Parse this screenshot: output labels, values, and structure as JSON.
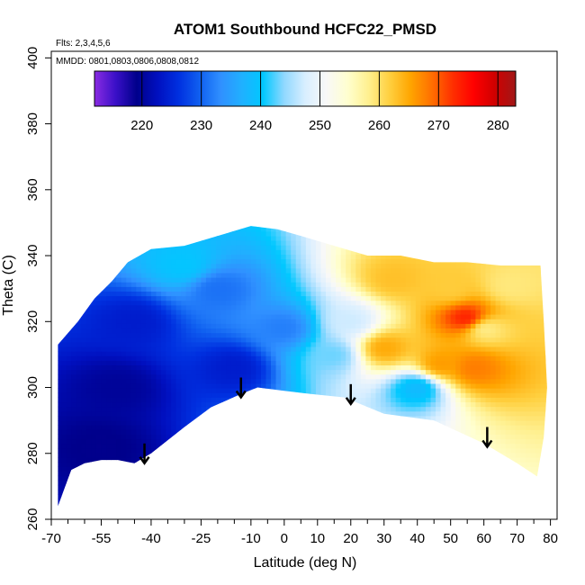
{
  "chart_data": {
    "type": "heatmap",
    "title": "ATOM1 Southbound HCFC22_PMSD",
    "flights_label": "Flts: 2,3,4,5,6",
    "dates_label": "MMDD: 0801,0803,0806,0808,0812",
    "xlabel": "Latitude (deg N)",
    "ylabel": "Theta (C)",
    "xlim": [
      -70,
      82
    ],
    "ylim": [
      260,
      402
    ],
    "x_ticks": [
      -70,
      -55,
      -40,
      -25,
      -10,
      0,
      10,
      20,
      30,
      40,
      50,
      60,
      70,
      80
    ],
    "x_tick_labels": [
      "-70",
      "-55",
      "-40",
      "-25",
      "-10",
      "0",
      "10",
      "20",
      "30",
      "40",
      "50",
      "60",
      "70",
      "80"
    ],
    "x_minor_ticks": [
      -65,
      -60,
      -50,
      -45,
      -35,
      -30,
      -20,
      -15,
      -5,
      5,
      15,
      25,
      35,
      45,
      55,
      65,
      75
    ],
    "y_ticks": [
      260,
      280,
      300,
      320,
      340,
      360,
      380,
      400
    ],
    "y_tick_labels": [
      "260",
      "280",
      "300",
      "320",
      "340",
      "360",
      "380",
      "400"
    ],
    "colorbar": {
      "range": [
        212,
        283
      ],
      "ticks": [
        220,
        230,
        240,
        250,
        260,
        270,
        280
      ],
      "tick_labels": [
        "220",
        "230",
        "240",
        "250",
        "260",
        "270",
        "280"
      ],
      "colors": [
        "#8a2be2",
        "#3a10c8",
        "#00008b",
        "#0010c0",
        "#0030e0",
        "#1060f0",
        "#3090ff",
        "#20b0ff",
        "#00c8ff",
        "#90d8ff",
        "#d8eeff",
        "#f8f8f8",
        "#ffffd0",
        "#fff090",
        "#ffd040",
        "#ffa500",
        "#ff7000",
        "#ff3000",
        "#ff0000",
        "#d00000",
        "#a01818"
      ]
    },
    "arrows_latitude": [
      -42,
      -13,
      20,
      61
    ],
    "arrows_theta": [
      277,
      297,
      295,
      282
    ],
    "ground_boundary": [
      [
        -68,
        264
      ],
      [
        -64,
        275
      ],
      [
        -60,
        277
      ],
      [
        -55,
        278
      ],
      [
        -50,
        278
      ],
      [
        -45,
        277
      ],
      [
        -40,
        280
      ],
      [
        -30,
        288
      ],
      [
        -22,
        294
      ],
      [
        -13,
        298
      ],
      [
        -8,
        300
      ],
      [
        0,
        299
      ],
      [
        8,
        298
      ],
      [
        18,
        297
      ],
      [
        30,
        292
      ],
      [
        45,
        290
      ],
      [
        60,
        283
      ],
      [
        70,
        277
      ],
      [
        76,
        273
      ]
    ],
    "top_boundary": [
      [
        -68,
        313
      ],
      [
        -62,
        320
      ],
      [
        -57,
        327
      ],
      [
        -52,
        332
      ],
      [
        -47,
        338
      ],
      [
        -40,
        342
      ],
      [
        -30,
        343
      ],
      [
        -20,
        346
      ],
      [
        -10,
        349
      ],
      [
        -2,
        348
      ],
      [
        5,
        346
      ],
      [
        15,
        343
      ],
      [
        25,
        340
      ],
      [
        35,
        340
      ],
      [
        45,
        338
      ],
      [
        55,
        338
      ],
      [
        65,
        337
      ],
      [
        75,
        337
      ],
      [
        77,
        337
      ]
    ],
    "right_edge": [
      [
        77,
        337
      ],
      [
        78,
        320
      ],
      [
        79,
        300
      ],
      [
        78,
        285
      ],
      [
        76,
        273
      ]
    ],
    "field_hotspots": [
      {
        "lat": 55,
        "theta": 321,
        "value": 274
      },
      {
        "lat": 30,
        "theta": 312,
        "value": 265
      },
      {
        "lat": 57,
        "theta": 306,
        "value": 268
      },
      {
        "lat": 47,
        "theta": 307,
        "value": 266
      },
      {
        "lat": 50,
        "theta": 330,
        "value": 262
      },
      {
        "lat": 68,
        "theta": 331,
        "value": 259
      },
      {
        "lat": 33,
        "theta": 333,
        "value": 263
      },
      {
        "lat": 60,
        "theta": 318,
        "value": 258
      },
      {
        "lat": -50,
        "theta": 300,
        "value": 220
      },
      {
        "lat": -55,
        "theta": 282,
        "value": 219
      },
      {
        "lat": -45,
        "theta": 320,
        "value": 224
      },
      {
        "lat": -15,
        "theta": 306,
        "value": 224
      },
      {
        "lat": -20,
        "theta": 330,
        "value": 231
      },
      {
        "lat": 0,
        "theta": 318,
        "value": 232
      },
      {
        "lat": 15,
        "theta": 310,
        "value": 243
      },
      {
        "lat": 20,
        "theta": 320,
        "value": 247
      },
      {
        "lat": 40,
        "theta": 300,
        "value": 238
      },
      {
        "lat": -30,
        "theta": 337,
        "value": 240
      }
    ]
  }
}
